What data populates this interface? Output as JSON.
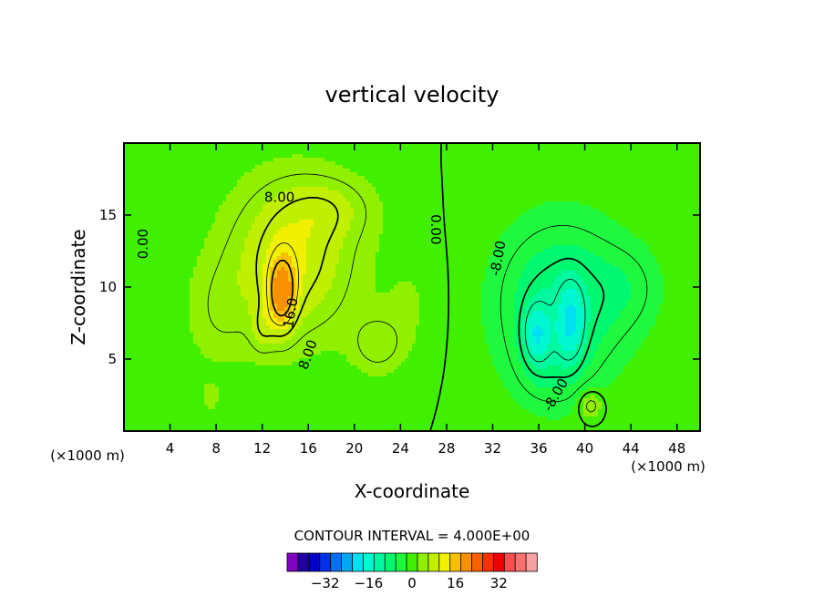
{
  "chart_data": {
    "type": "heatmap",
    "title": "vertical velocity",
    "xlabel": "X-coordinate",
    "ylabel": "Z-coordinate",
    "x_unit_left": "(×1000 m)",
    "x_unit_right": "(×1000 m)",
    "xlim": [
      0,
      50
    ],
    "ylim": [
      0,
      20
    ],
    "x_ticks": [
      4,
      8,
      12,
      16,
      20,
      24,
      28,
      32,
      36,
      40,
      44,
      48
    ],
    "x_tick_labels": [
      "4",
      "8",
      "12",
      "16",
      "20",
      "24",
      "28",
      "32",
      "36",
      "40",
      "44",
      "48"
    ],
    "y_ticks": [
      5,
      10,
      15
    ],
    "y_tick_labels": [
      "5",
      "10",
      "15"
    ],
    "contour_interval_text": "CONTOUR INTERVAL = 4.000E+00",
    "contour_labels": [
      {
        "text": "8.00",
        "x": 13.5,
        "y": 16.2,
        "rotate": 0
      },
      {
        "text": "16.0",
        "x": 14.5,
        "y": 8.2,
        "rotate": -80
      },
      {
        "text": "8.00",
        "x": 16.0,
        "y": 5.3,
        "rotate": -70
      },
      {
        "text": "0.00",
        "x": 1.7,
        "y": 13.0,
        "rotate": -90
      },
      {
        "text": "0.00",
        "x": 27.0,
        "y": 14.0,
        "rotate": 90
      },
      {
        "text": "-8.00",
        "x": 32.5,
        "y": 12.0,
        "rotate": -80
      },
      {
        "text": "-8.00",
        "x": 37.5,
        "y": 2.5,
        "rotate": -60
      }
    ],
    "colorbar": {
      "colors": [
        "#8000c0",
        "#2000a0",
        "#0000c8",
        "#0030e8",
        "#0070f0",
        "#00a8f0",
        "#00e0f0",
        "#00f8d0",
        "#00f8a0",
        "#00f870",
        "#20f840",
        "#40f000",
        "#90f000",
        "#c0f000",
        "#f0f000",
        "#f8c000",
        "#f89000",
        "#f86000",
        "#f83000",
        "#f00000",
        "#f85050",
        "#f87070",
        "#f8a0a0"
      ],
      "tick_values": [
        -32,
        -16,
        0,
        16,
        32
      ],
      "tick_labels": [
        "−32",
        "−16",
        "0",
        "16",
        "32"
      ],
      "vmin": -46,
      "vmax": 46
    },
    "background_color": "#20f800",
    "grid": false
  }
}
